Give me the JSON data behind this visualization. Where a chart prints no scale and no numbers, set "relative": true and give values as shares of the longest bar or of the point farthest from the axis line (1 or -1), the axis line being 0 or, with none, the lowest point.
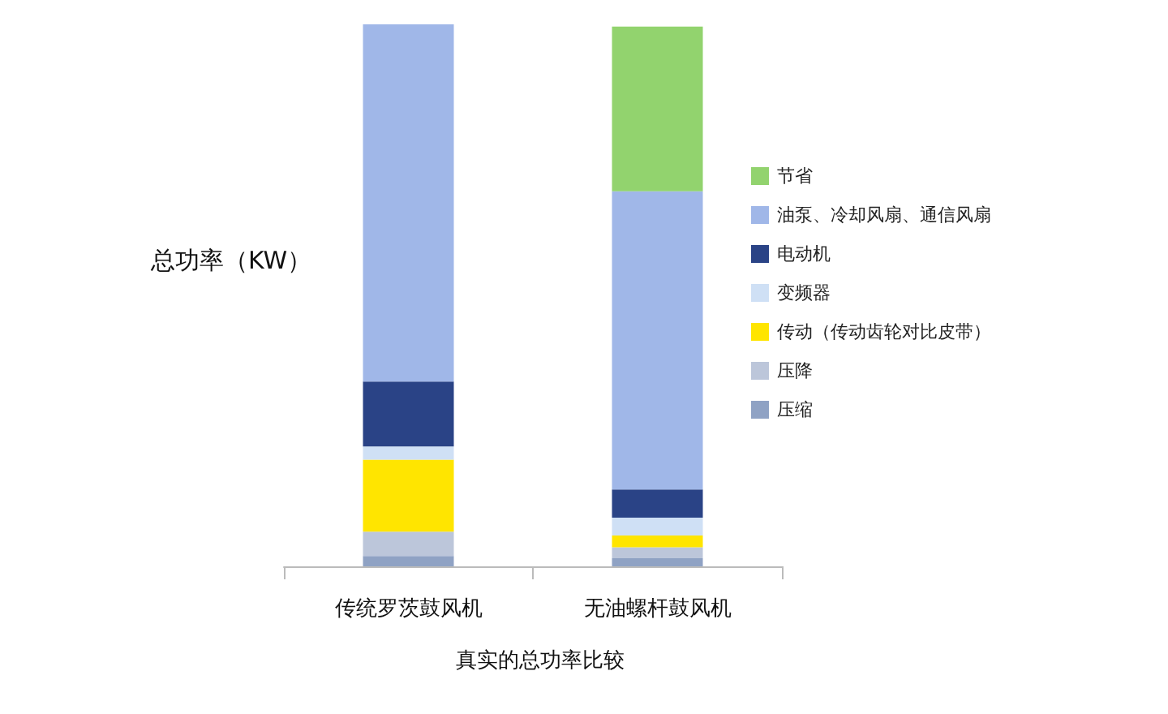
{
  "chart_data": {
    "type": "bar",
    "stacked": true,
    "relative": true,
    "xlabel": "真实的总功率比较",
    "ylabel": "总功率（KW）",
    "categories": [
      "传统罗茨鼓风机",
      "无油螺杆鼓风机"
    ],
    "legend": "right",
    "grid": false,
    "series": [
      {
        "name": "压缩",
        "color": "#8fa2c4",
        "values": [
          0.019,
          0.015
        ]
      },
      {
        "name": "压降",
        "color": "#bcc6da",
        "values": [
          0.045,
          0.02
        ]
      },
      {
        "name": "传动（传动齿轮对比皮带）",
        "color": "#ffe500",
        "values": [
          0.133,
          0.022
        ]
      },
      {
        "name": "变频器",
        "color": "#cfe0f5",
        "values": [
          0.024,
          0.033
        ]
      },
      {
        "name": "电动机",
        "color": "#2a4386",
        "values": [
          0.12,
          0.052
        ]
      },
      {
        "name": "油泵、冷却风扇、通信风扇",
        "color": "#a0b7e8",
        "values": [
          0.659,
          0.55
        ]
      },
      {
        "name": "节省",
        "color": "#92d36e",
        "values": [
          null,
          0.304
        ]
      }
    ]
  }
}
